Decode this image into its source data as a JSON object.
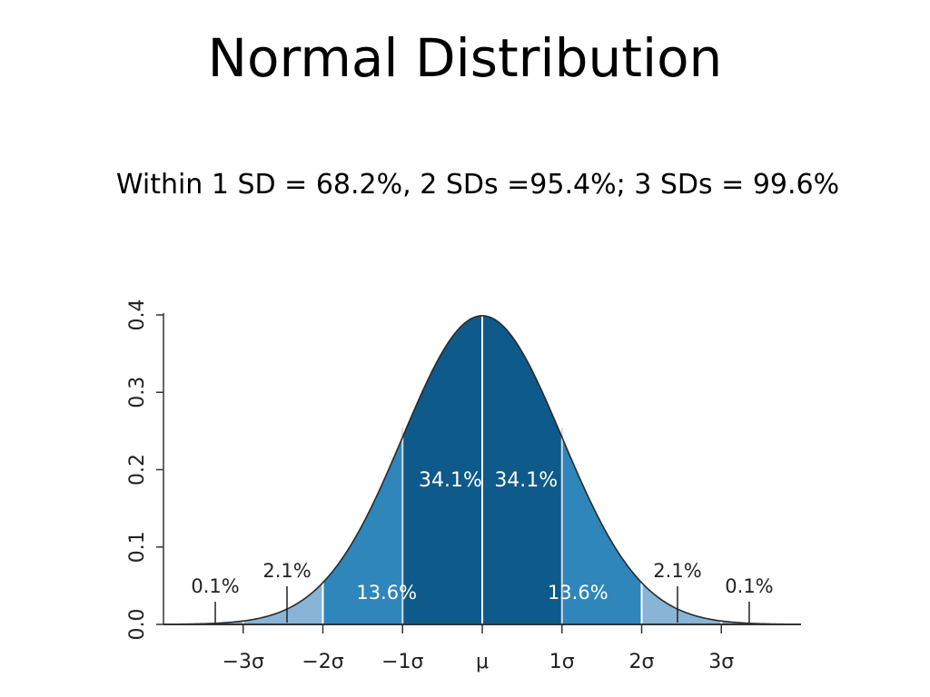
{
  "slide": {
    "title": "Normal Distribution",
    "subtitle": "Within 1 SD = 68.2%, 2 SDs =95.4%; 3 SDs = 99.6%"
  },
  "chart_data": {
    "type": "area",
    "x_ticks": [
      "−3σ",
      "−2σ",
      "−1σ",
      "μ",
      "1σ",
      "2σ",
      "3σ"
    ],
    "x_tick_values": [
      -3,
      -2,
      -1,
      0,
      1,
      2,
      3
    ],
    "y_ticks": [
      "0.0",
      "0.1",
      "0.2",
      "0.3",
      "0.4"
    ],
    "y_tick_values": [
      0,
      0.1,
      0.2,
      0.3,
      0.4
    ],
    "xlim": [
      -4,
      4
    ],
    "ylim": [
      0,
      0.4
    ],
    "curve": "standard normal density",
    "regions": [
      {
        "from": -4,
        "to": -3,
        "percent": "0.1%",
        "color": "#89b4d6"
      },
      {
        "from": -3,
        "to": -2,
        "percent": "2.1%",
        "color": "#89b4d6"
      },
      {
        "from": -2,
        "to": -1,
        "percent": "13.6%",
        "color": "#2f86ba"
      },
      {
        "from": -1,
        "to": 0,
        "percent": "34.1%",
        "color": "#0e5a8a"
      },
      {
        "from": 0,
        "to": 1,
        "percent": "34.1%",
        "color": "#0e5a8a"
      },
      {
        "from": 1,
        "to": 2,
        "percent": "13.6%",
        "color": "#2f86ba"
      },
      {
        "from": 2,
        "to": 3,
        "percent": "2.1%",
        "color": "#89b4d6"
      },
      {
        "from": 3,
        "to": 4,
        "percent": "0.1%",
        "color": "#89b4d6"
      }
    ]
  }
}
